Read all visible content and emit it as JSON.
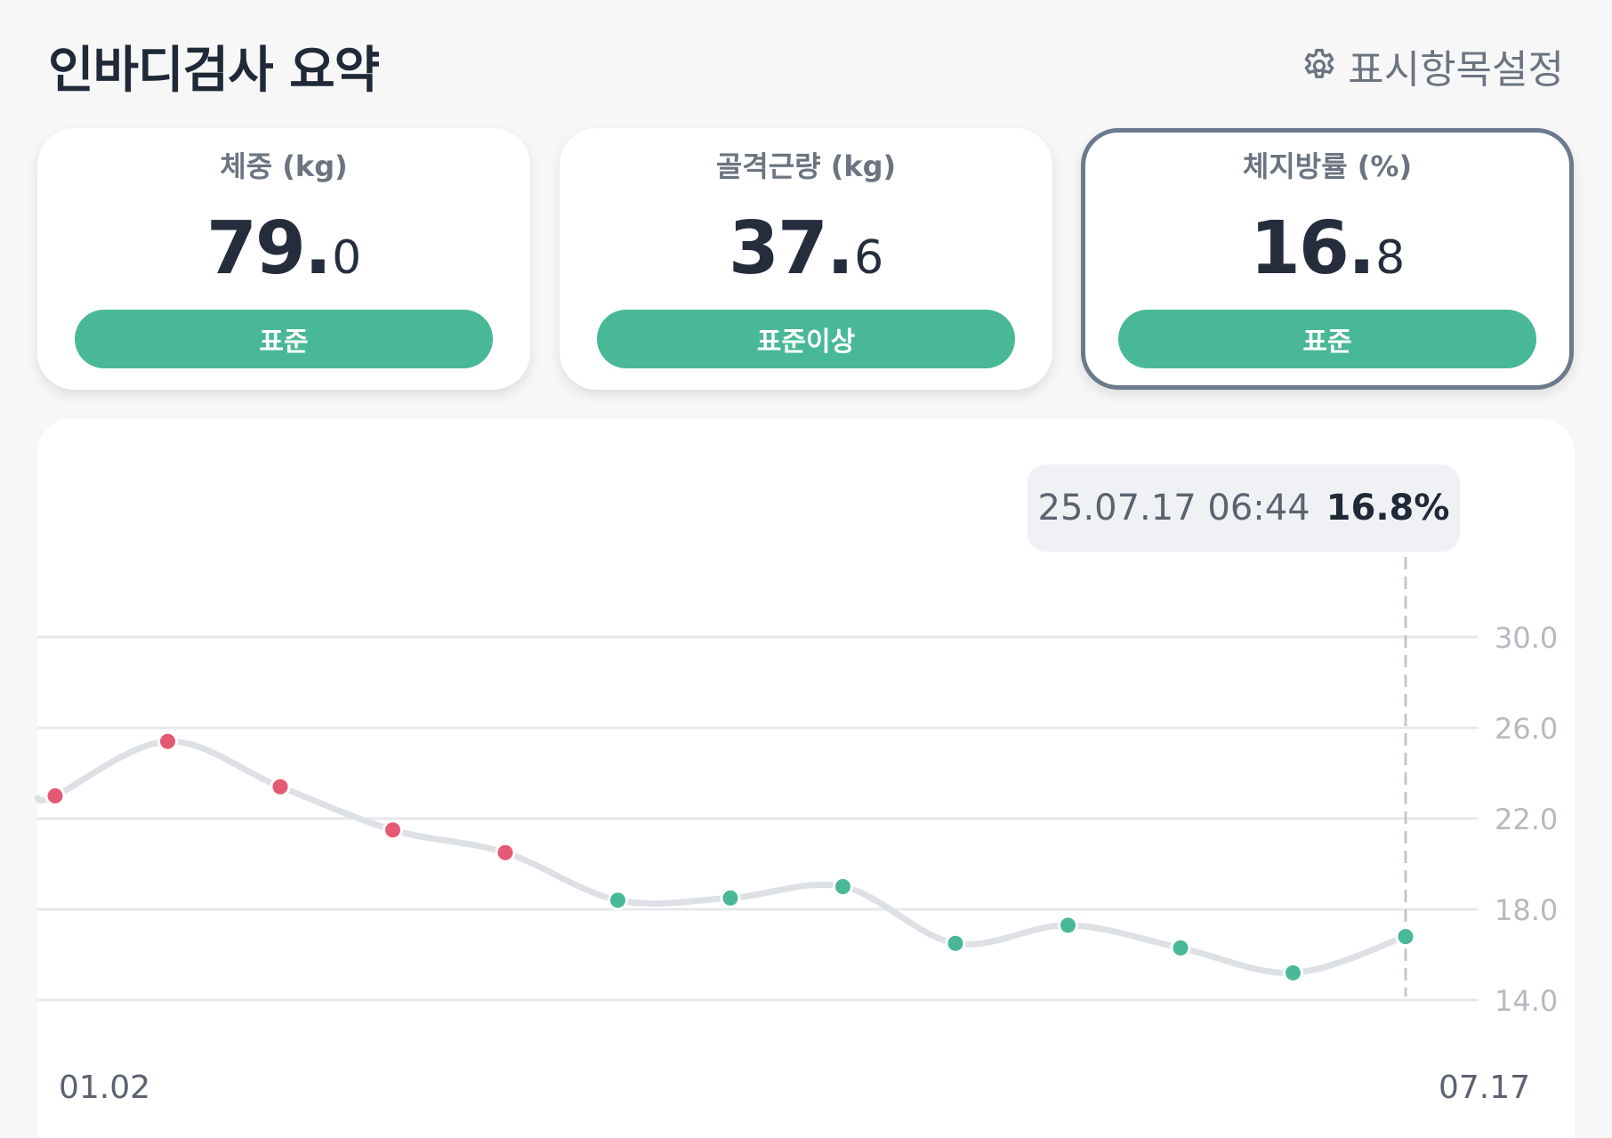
{
  "header": {
    "title": "인바디검사 요약",
    "settings_label": "표시항목설정",
    "settings_icon": "gear-icon"
  },
  "cards": [
    {
      "label": "체중 (kg)",
      "value_int": "79",
      "value_dec": "0",
      "status": "표준",
      "selected": false
    },
    {
      "label": "골격근량 (kg)",
      "value_int": "37",
      "value_dec": "6",
      "status": "표준이상",
      "selected": false
    },
    {
      "label": "체지방률 (%)",
      "value_int": "16",
      "value_dec": "8",
      "status": "표준",
      "selected": true
    }
  ],
  "colors": {
    "status_green": "#49b897",
    "point_red": "#e55a72",
    "point_green": "#49b897",
    "line_gray": "#dde0e5",
    "grid_gray": "#e6e8eb"
  },
  "tooltip": {
    "date": "25.07.17 06:44",
    "value": "16.8%"
  },
  "chart_data": {
    "type": "line",
    "x_start_label": "01.02",
    "x_end_label": "07.17",
    "y_ticks": [
      "30.0",
      "26.0",
      "22.0",
      "18.0",
      "14.0"
    ],
    "ylim": [
      14,
      30
    ],
    "grid": true,
    "values": [
      23.0,
      25.4,
      23.4,
      21.5,
      20.5,
      18.4,
      18.5,
      19.0,
      16.5,
      17.3,
      16.3,
      15.2,
      16.8
    ],
    "status": [
      "over",
      "over",
      "over",
      "over",
      "over",
      "normal",
      "normal",
      "normal",
      "normal",
      "normal",
      "normal",
      "normal",
      "normal"
    ],
    "highlighted_index": 12
  }
}
